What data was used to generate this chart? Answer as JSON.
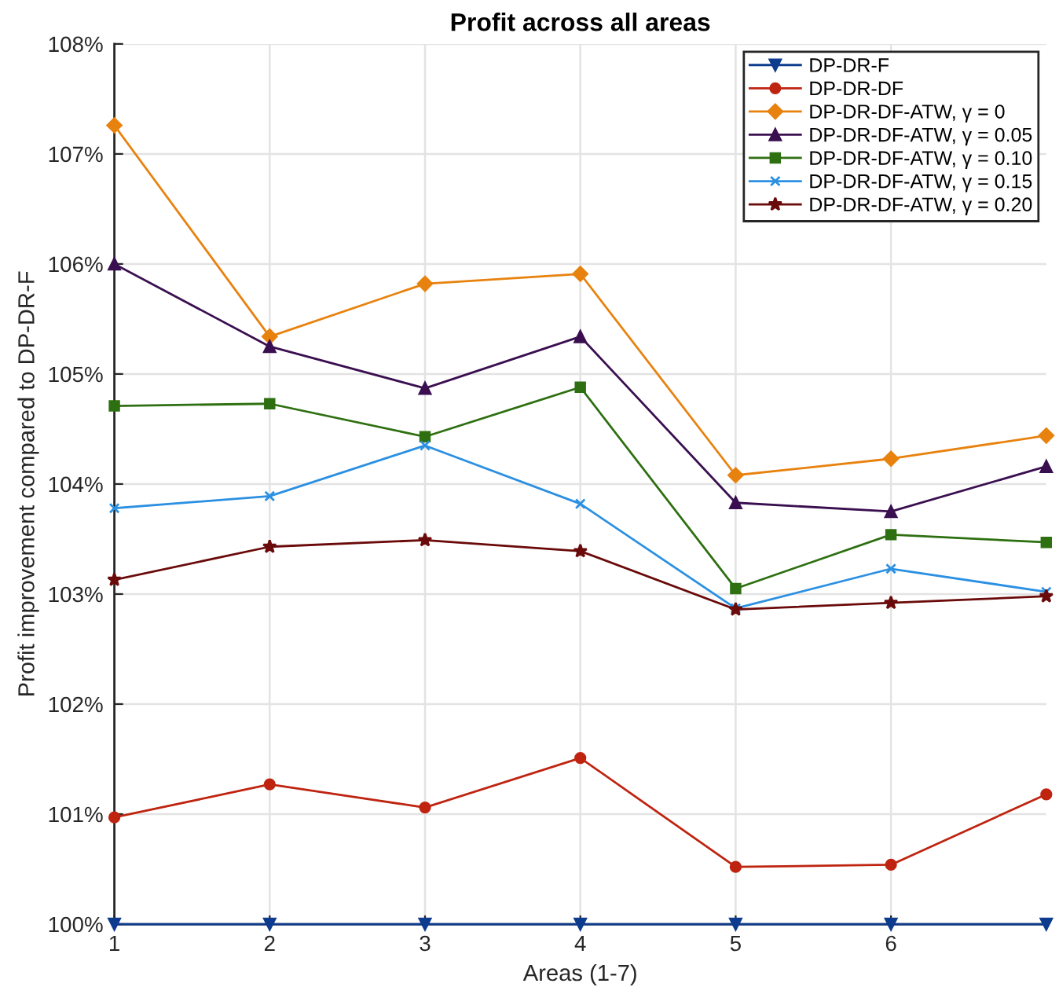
{
  "chart_data": {
    "type": "line",
    "title": "Profit across all areas",
    "xlabel": "Areas (1-7)",
    "ylabel": "Profit improvement compared to DP-DR-F",
    "x": [
      1,
      2,
      3,
      4,
      5,
      6,
      7
    ],
    "xlim": [
      1,
      7
    ],
    "xticks": [
      1,
      2,
      3,
      4,
      5,
      6
    ],
    "ylim": [
      100,
      108
    ],
    "yticks": [
      {
        "value": 100,
        "label": "100%"
      },
      {
        "value": 101,
        "label": "101%"
      },
      {
        "value": 102,
        "label": "102%"
      },
      {
        "value": 103,
        "label": "103%"
      },
      {
        "value": 104,
        "label": "104%"
      },
      {
        "value": 105,
        "label": "105%"
      },
      {
        "value": 106,
        "label": "106%"
      },
      {
        "value": 107,
        "label": "107%"
      },
      {
        "value": 108,
        "label": "108%"
      }
    ],
    "grid": true,
    "legend": "top right",
    "line_style": "solid",
    "series": [
      {
        "name": "DP-DR-F",
        "color": "#0d3b8e",
        "marker": "triangle_down",
        "values": [
          100,
          100,
          100,
          100,
          100,
          100,
          100
        ]
      },
      {
        "name": "DP-DR-DF",
        "color": "#bf2410",
        "marker": "circle",
        "values": [
          100.97,
          101.27,
          101.06,
          101.51,
          100.52,
          100.54,
          101.18
        ]
      },
      {
        "name": "DP-DR-DF-ATW, γ = 0",
        "color": "#e8820f",
        "marker": "diamond",
        "values": [
          107.26,
          105.34,
          105.82,
          105.91,
          104.08,
          104.23,
          104.44
        ]
      },
      {
        "name": "DP-DR-DF-ATW, γ = 0.05",
        "color": "#3a0f50",
        "marker": "triangle",
        "values": [
          106.0,
          105.25,
          104.87,
          105.34,
          103.83,
          103.75,
          104.16
        ]
      },
      {
        "name": "DP-DR-DF-ATW, γ = 0.10",
        "color": "#2e7011",
        "marker": "square",
        "values": [
          104.71,
          104.73,
          104.43,
          104.88,
          103.05,
          103.54,
          103.47
        ]
      },
      {
        "name": "DP-DR-DF-ATW, γ = 0.15",
        "color": "#2b90e2",
        "marker": "cross",
        "values": [
          103.78,
          103.89,
          104.35,
          103.82,
          102.87,
          103.23,
          103.02
        ]
      },
      {
        "name": "DP-DR-DF-ATW, γ = 0.20",
        "color": "#6a0a0a",
        "marker": "star",
        "values": [
          103.13,
          103.43,
          103.49,
          103.39,
          102.86,
          102.92,
          102.98
        ]
      }
    ]
  }
}
